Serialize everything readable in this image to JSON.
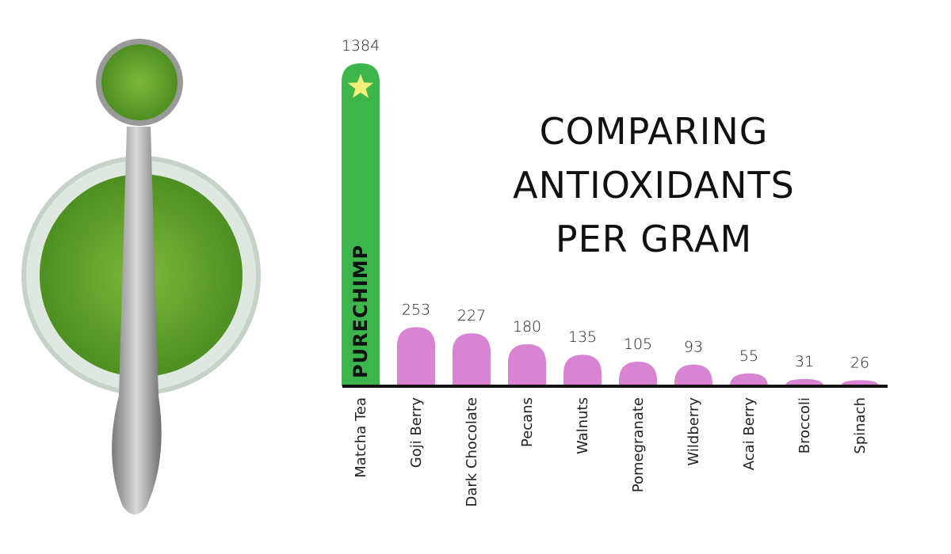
{
  "chart_data": {
    "type": "bar",
    "title": "COMPARING ANTIOXIDANTS PER GRAM",
    "brand": "PURECHIMP",
    "categories": [
      "Matcha Tea",
      "Goji Berry",
      "Dark Chocolate",
      "Pecans",
      "Walnuts",
      "Pomegranate",
      "Wildberry",
      "Acai Berry",
      "Broccoli",
      "Spinach"
    ],
    "values": [
      1384,
      253,
      227,
      180,
      135,
      105,
      93,
      55,
      31,
      26
    ],
    "colors": [
      "#3cb54b",
      "#d884d3",
      "#d884d3",
      "#d884d3",
      "#d884d3",
      "#d884d3",
      "#d884d3",
      "#d884d3",
      "#d884d3",
      "#d884d3"
    ]
  }
}
